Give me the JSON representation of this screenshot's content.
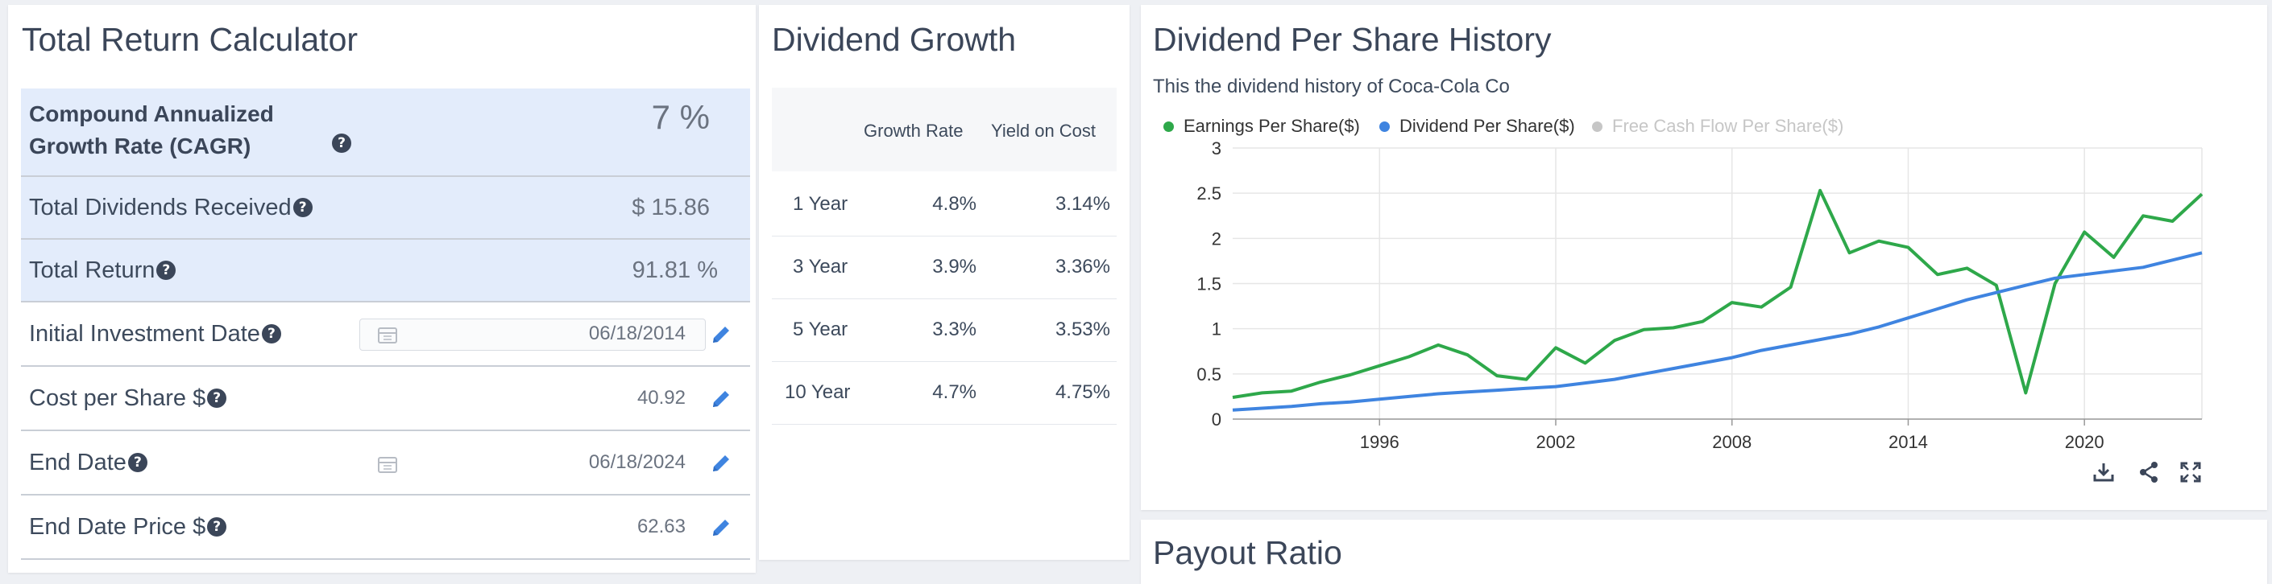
{
  "calculator": {
    "title": "Total Return Calculator",
    "cagr_label_line1": "Compound Annualized",
    "cagr_label_line2": "Growth Rate (CAGR)",
    "cagr_value": "7 %",
    "dividends_label": "Total Dividends Received",
    "dividends_value": "$ 15.86",
    "total_return_label": "Total Return",
    "total_return_value": "91.81 %",
    "initial_date_label": "Initial Investment Date",
    "initial_date_value": "06/18/2014",
    "cost_label": "Cost per Share $",
    "cost_value": "40.92",
    "end_date_label": "End Date",
    "end_date_value": "06/18/2024",
    "end_price_label": "End Date Price $",
    "end_price_value": "62.63"
  },
  "growth": {
    "title": "Dividend Growth",
    "col_rate": "Growth Rate",
    "col_yield": "Yield on Cost",
    "rows": [
      {
        "period": "1 Year",
        "rate": "4.8%",
        "yield": "3.14%"
      },
      {
        "period": "3 Year",
        "rate": "3.9%",
        "yield": "3.36%"
      },
      {
        "period": "5 Year",
        "rate": "3.3%",
        "yield": "3.53%"
      },
      {
        "period": "10 Year",
        "rate": "4.7%",
        "yield": "4.75%"
      }
    ]
  },
  "history": {
    "title": "Dividend Per Share History",
    "subtitle": "This the dividend history of Coca-Cola Co"
  },
  "payout": {
    "title": "Payout Ratio"
  },
  "colors": {
    "accent_blue": "#4a8fe8",
    "eps_green": "#2ea84a",
    "dividend_blue": "#3f84e0",
    "fcf_gray": "#c6c6c6",
    "highlight_bg": "#e3ecfb"
  },
  "chart_data": {
    "type": "line",
    "title": "Dividend Per Share History",
    "x": [
      1991,
      1992,
      1993,
      1994,
      1995,
      1996,
      1997,
      1998,
      1999,
      2000,
      2001,
      2002,
      2003,
      2004,
      2005,
      2006,
      2007,
      2008,
      2009,
      2010,
      2011,
      2012,
      2013,
      2014,
      2015,
      2016,
      2017,
      2018,
      2019,
      2020,
      2021,
      2022,
      2023,
      2024
    ],
    "x_ticks": [
      "1996",
      "2002",
      "2008",
      "2014",
      "2020"
    ],
    "ylim": [
      0,
      3
    ],
    "y_ticks": [
      "0",
      "0.5",
      "1",
      "1.5",
      "2",
      "2.5",
      "3"
    ],
    "legend": [
      {
        "name": "Earnings Per Share($)",
        "active": true
      },
      {
        "name": "Dividend Per Share($)",
        "active": true
      },
      {
        "name": "Free Cash Flow Per Share($)",
        "active": false
      }
    ],
    "series": [
      {
        "name": "Earnings Per Share($)",
        "values": [
          0.24,
          0.29,
          0.31,
          0.41,
          0.49,
          0.59,
          0.69,
          0.82,
          0.71,
          0.48,
          0.44,
          0.79,
          0.62,
          0.87,
          0.99,
          1.01,
          1.08,
          1.29,
          1.24,
          1.46,
          2.53,
          1.84,
          1.97,
          1.9,
          1.6,
          1.67,
          1.48,
          0.29,
          1.5,
          2.07,
          1.79,
          2.25,
          2.19,
          2.49
        ]
      },
      {
        "name": "Dividend Per Share($)",
        "values": [
          0.1,
          0.12,
          0.14,
          0.17,
          0.19,
          0.22,
          0.25,
          0.28,
          0.3,
          0.32,
          0.34,
          0.36,
          0.4,
          0.44,
          0.5,
          0.56,
          0.62,
          0.68,
          0.76,
          0.82,
          0.88,
          0.94,
          1.02,
          1.12,
          1.22,
          1.32,
          1.4,
          1.48,
          1.56,
          1.6,
          1.64,
          1.68,
          1.76,
          1.84
        ]
      }
    ],
    "toolbar": [
      "download-icon",
      "share-icon",
      "fullscreen-icon"
    ]
  }
}
